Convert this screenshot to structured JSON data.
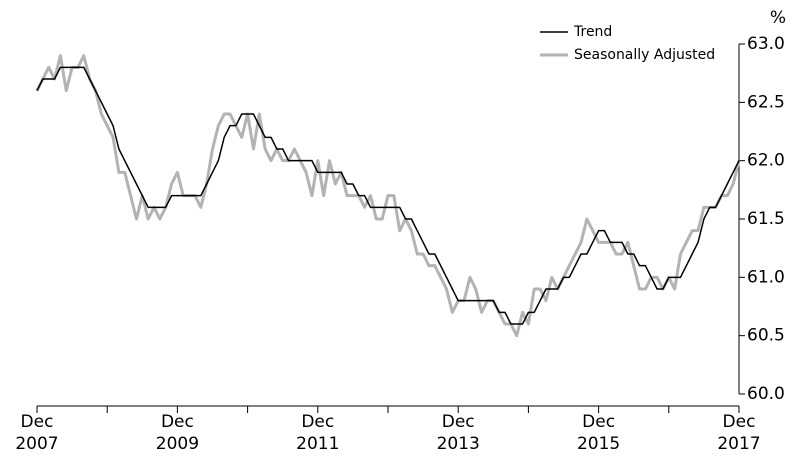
{
  "chart_data": {
    "type": "line",
    "y_unit": "%",
    "x": [
      "2007-12",
      "2008-01",
      "2008-02",
      "2008-03",
      "2008-04",
      "2008-05",
      "2008-06",
      "2008-07",
      "2008-08",
      "2008-09",
      "2008-10",
      "2008-11",
      "2008-12",
      "2009-01",
      "2009-02",
      "2009-03",
      "2009-04",
      "2009-05",
      "2009-06",
      "2009-07",
      "2009-08",
      "2009-09",
      "2009-10",
      "2009-11",
      "2009-12",
      "2010-01",
      "2010-02",
      "2010-03",
      "2010-04",
      "2010-05",
      "2010-06",
      "2010-07",
      "2010-08",
      "2010-09",
      "2010-10",
      "2010-11",
      "2010-12",
      "2011-01",
      "2011-02",
      "2011-03",
      "2011-04",
      "2011-05",
      "2011-06",
      "2011-07",
      "2011-08",
      "2011-09",
      "2011-10",
      "2011-11",
      "2011-12",
      "2012-01",
      "2012-02",
      "2012-03",
      "2012-04",
      "2012-05",
      "2012-06",
      "2012-07",
      "2012-08",
      "2012-09",
      "2012-10",
      "2012-11",
      "2012-12",
      "2013-01",
      "2013-02",
      "2013-03",
      "2013-04",
      "2013-05",
      "2013-06",
      "2013-07",
      "2013-08",
      "2013-09",
      "2013-10",
      "2013-11",
      "2013-12",
      "2014-01",
      "2014-02",
      "2014-03",
      "2014-04",
      "2014-05",
      "2014-06",
      "2014-07",
      "2014-08",
      "2014-09",
      "2014-10",
      "2014-11",
      "2014-12",
      "2015-01",
      "2015-02",
      "2015-03",
      "2015-04",
      "2015-05",
      "2015-06",
      "2015-07",
      "2015-08",
      "2015-09",
      "2015-10",
      "2015-11",
      "2015-12",
      "2016-01",
      "2016-02",
      "2016-03",
      "2016-04",
      "2016-05",
      "2016-06",
      "2016-07",
      "2016-08",
      "2016-09",
      "2016-10",
      "2016-11",
      "2016-12",
      "2017-01",
      "2017-02",
      "2017-03",
      "2017-04",
      "2017-05",
      "2017-06",
      "2017-07",
      "2017-08",
      "2017-09",
      "2017-10",
      "2017-11",
      "2017-12"
    ],
    "series": [
      {
        "name": "Trend",
        "color": "#000000",
        "width": 1.5,
        "values": [
          62.6,
          62.7,
          62.7,
          62.7,
          62.8,
          62.8,
          62.8,
          62.8,
          62.8,
          62.7,
          62.6,
          62.5,
          62.4,
          62.3,
          62.1,
          62.0,
          61.9,
          61.8,
          61.7,
          61.6,
          61.6,
          61.6,
          61.6,
          61.7,
          61.7,
          61.7,
          61.7,
          61.7,
          61.7,
          61.8,
          61.9,
          62.0,
          62.2,
          62.3,
          62.3,
          62.4,
          62.4,
          62.4,
          62.3,
          62.2,
          62.2,
          62.1,
          62.1,
          62.0,
          62.0,
          62.0,
          62.0,
          62.0,
          61.9,
          61.9,
          61.9,
          61.9,
          61.9,
          61.8,
          61.8,
          61.7,
          61.7,
          61.6,
          61.6,
          61.6,
          61.6,
          61.6,
          61.6,
          61.5,
          61.5,
          61.4,
          61.3,
          61.2,
          61.2,
          61.1,
          61.0,
          60.9,
          60.8,
          60.8,
          60.8,
          60.8,
          60.8,
          60.8,
          60.8,
          60.7,
          60.7,
          60.6,
          60.6,
          60.6,
          60.7,
          60.7,
          60.8,
          60.9,
          60.9,
          60.9,
          61.0,
          61.0,
          61.1,
          61.2,
          61.2,
          61.3,
          61.4,
          61.4,
          61.3,
          61.3,
          61.3,
          61.2,
          61.2,
          61.1,
          61.1,
          61.0,
          60.9,
          60.9,
          61.0,
          61.0,
          61.0,
          61.1,
          61.2,
          61.3,
          61.5,
          61.6,
          61.6,
          61.7,
          61.8,
          61.9,
          62.0
        ]
      },
      {
        "name": "Seasonally Adjusted",
        "color": "#b3b3b3",
        "width": 3,
        "values": [
          62.6,
          62.7,
          62.8,
          62.7,
          62.9,
          62.6,
          62.8,
          62.8,
          62.9,
          62.7,
          62.6,
          62.4,
          62.3,
          62.2,
          61.9,
          61.9,
          61.7,
          61.5,
          61.7,
          61.5,
          61.6,
          61.5,
          61.6,
          61.8,
          61.9,
          61.7,
          61.7,
          61.7,
          61.6,
          61.8,
          62.1,
          62.3,
          62.4,
          62.4,
          62.3,
          62.2,
          62.4,
          62.1,
          62.4,
          62.1,
          62.0,
          62.1,
          62.0,
          62.0,
          62.1,
          62.0,
          61.9,
          61.7,
          62.0,
          61.7,
          62.0,
          61.8,
          61.9,
          61.7,
          61.7,
          61.7,
          61.6,
          61.7,
          61.5,
          61.5,
          61.7,
          61.7,
          61.4,
          61.5,
          61.4,
          61.2,
          61.2,
          61.1,
          61.1,
          61.0,
          60.9,
          60.7,
          60.8,
          60.8,
          61.0,
          60.9,
          60.7,
          60.8,
          60.8,
          60.7,
          60.6,
          60.6,
          60.5,
          60.7,
          60.6,
          60.9,
          60.9,
          60.8,
          61.0,
          60.9,
          61.0,
          61.1,
          61.2,
          61.3,
          61.5,
          61.4,
          61.3,
          61.3,
          61.3,
          61.2,
          61.2,
          61.3,
          61.1,
          60.9,
          60.9,
          61.0,
          61.0,
          60.9,
          61.0,
          60.9,
          61.2,
          61.3,
          61.4,
          61.4,
          61.6,
          61.6,
          61.6,
          61.7,
          61.7,
          61.8,
          62.0
        ]
      }
    ],
    "xlim": [
      "2007-12",
      "2017-12"
    ],
    "xticks": [
      {
        "value": "2007-12",
        "label": [
          "Dec",
          "2007"
        ]
      },
      {
        "value": "2008-12",
        "label": null
      },
      {
        "value": "2009-12",
        "label": [
          "Dec",
          "2009"
        ]
      },
      {
        "value": "2010-12",
        "label": null
      },
      {
        "value": "2011-12",
        "label": [
          "Dec",
          "2011"
        ]
      },
      {
        "value": "2012-12",
        "label": null
      },
      {
        "value": "2013-12",
        "label": [
          "Dec",
          "2013"
        ]
      },
      {
        "value": "2014-12",
        "label": null
      },
      {
        "value": "2015-12",
        "label": [
          "Dec",
          "2015"
        ]
      },
      {
        "value": "2016-12",
        "label": null
      },
      {
        "value": "2017-12",
        "label": [
          "Dec",
          "2017"
        ]
      }
    ],
    "ylim": [
      60,
      63
    ],
    "yticks": [
      {
        "value": 60,
        "label": "60.0"
      },
      {
        "value": 60.5,
        "label": "60.5"
      },
      {
        "value": 61,
        "label": "61.0"
      },
      {
        "value": 61.5,
        "label": "61.5"
      },
      {
        "value": 62,
        "label": "62.0"
      },
      {
        "value": 62.5,
        "label": "62.5"
      },
      {
        "value": 63,
        "label": "63.0"
      }
    ],
    "y_axis_side": "right",
    "legend": "top-right",
    "grid": false
  }
}
